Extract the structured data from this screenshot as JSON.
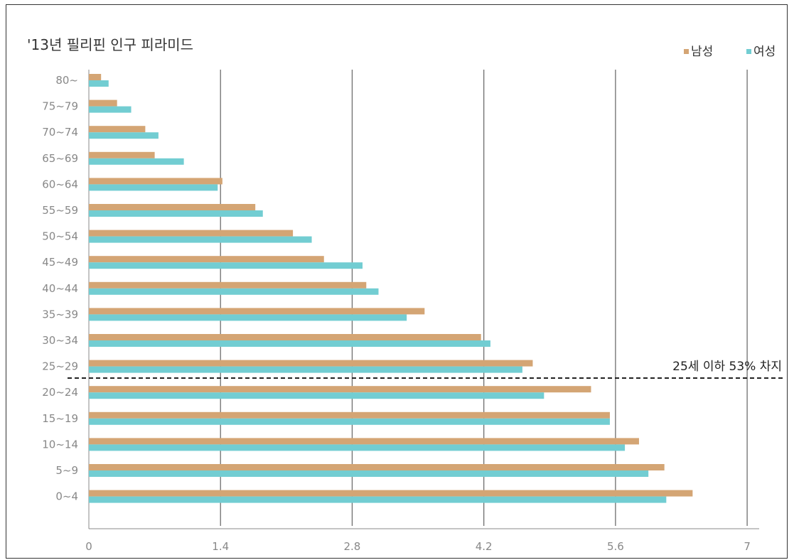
{
  "chart_data": {
    "type": "bar",
    "orientation": "horizontal",
    "title": "'13년 필리핀 인구 피라미드",
    "categories": [
      "80~",
      "75~79",
      "70~74",
      "65~69",
      "60~64",
      "55~59",
      "50~54",
      "45~49",
      "40~44",
      "35~39",
      "30~34",
      "25~29",
      "20~24",
      "15~19",
      "10~14",
      "5~9",
      "0~4"
    ],
    "series": [
      {
        "name": "남성",
        "color": "#d4a574",
        "values": [
          0.13,
          0.3,
          0.6,
          0.7,
          1.42,
          1.77,
          2.17,
          2.5,
          2.95,
          3.57,
          4.17,
          4.72,
          5.34,
          5.54,
          5.85,
          6.12,
          6.42
        ]
      },
      {
        "name": "여성",
        "color": "#72cdd2",
        "values": [
          0.21,
          0.45,
          0.74,
          1.01,
          1.37,
          1.85,
          2.37,
          2.91,
          3.08,
          3.38,
          4.27,
          4.61,
          4.84,
          5.54,
          5.7,
          5.95,
          6.14
        ]
      }
    ],
    "xticks": [
      "0",
      "1.4",
      "2.8",
      "4.2",
      "5.6",
      "7"
    ],
    "xlim": [
      0,
      7.2
    ],
    "grid": true,
    "legend": "top-right",
    "annotation": {
      "text": "25세 이하 53% 차지",
      "between": [
        "25~29",
        "20~24"
      ]
    }
  }
}
